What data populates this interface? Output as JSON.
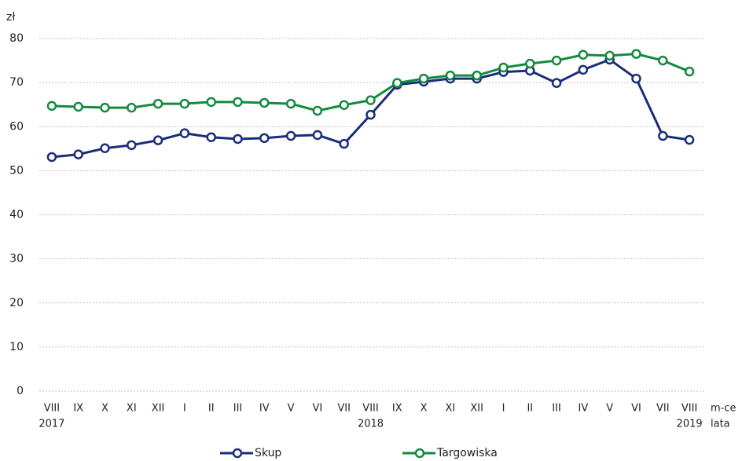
{
  "chart_data": {
    "type": "line",
    "y_label": "zł",
    "x_label": "m-ce",
    "year_axis_label": "lata",
    "categories": [
      "VIII",
      "IX",
      "X",
      "XI",
      "XII",
      "I",
      "II",
      "III",
      "IV",
      "V",
      "VI",
      "VII",
      "VIII",
      "IX",
      "X",
      "XI",
      "XII",
      "I",
      "II",
      "III",
      "IV",
      "V",
      "VI",
      "VII",
      "VIII"
    ],
    "years": [
      "2017",
      null,
      null,
      null,
      null,
      null,
      null,
      null,
      null,
      null,
      null,
      null,
      "2018",
      null,
      null,
      null,
      null,
      null,
      null,
      null,
      null,
      null,
      null,
      null,
      "2019"
    ],
    "series": [
      {
        "name": "Skup",
        "color": "#1a2d7a",
        "values": [
          53.1,
          53.7,
          55.1,
          55.8,
          56.9,
          58.5,
          57.6,
          57.2,
          57.4,
          57.9,
          58.1,
          56.1,
          62.7,
          69.5,
          70.2,
          70.9,
          70.9,
          72.4,
          72.7,
          69.9,
          72.9,
          75.2,
          70.9,
          57.9,
          57.0
        ]
      },
      {
        "name": "Targowiska",
        "color": "#138a3e",
        "values": [
          64.7,
          64.5,
          64.3,
          64.3,
          65.2,
          65.2,
          65.6,
          65.6,
          65.4,
          65.2,
          63.6,
          64.9,
          66.0,
          69.9,
          70.9,
          71.6,
          71.6,
          73.4,
          74.3,
          75.0,
          76.3,
          76.1,
          76.5,
          75.0,
          72.5
        ]
      }
    ],
    "ylim": [
      0,
      80
    ],
    "yticks": [
      0,
      10,
      20,
      30,
      40,
      50,
      60,
      70,
      80
    ],
    "grid": true,
    "legend": "bottom"
  }
}
